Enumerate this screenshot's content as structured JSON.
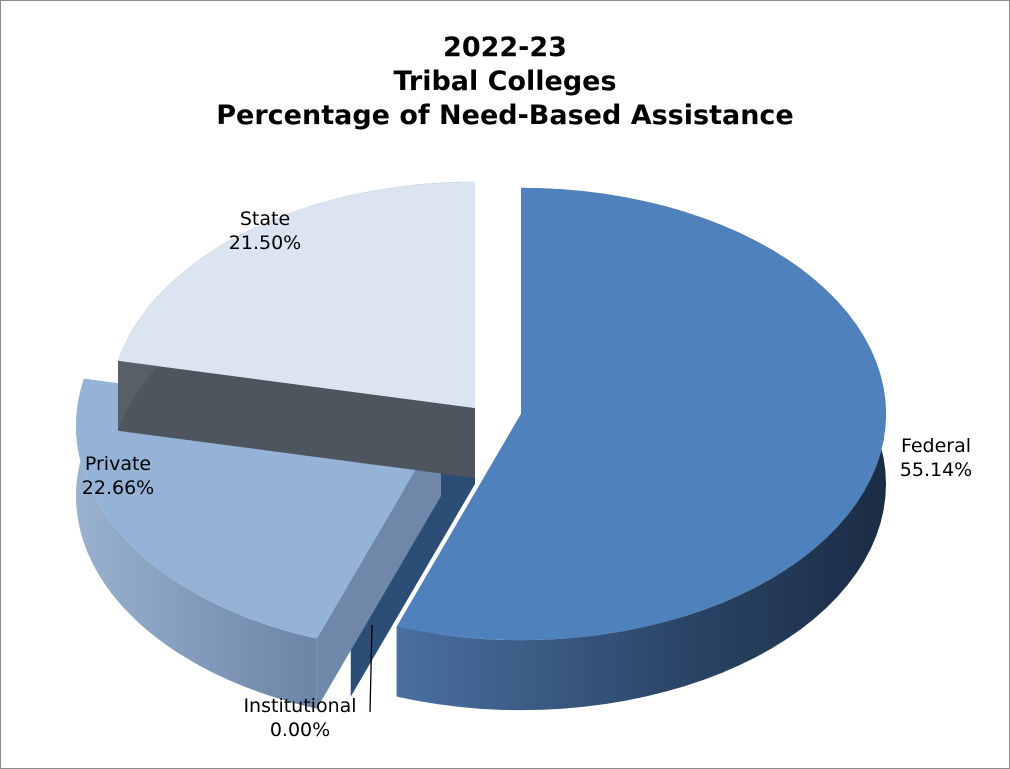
{
  "chart_data": {
    "type": "pie",
    "title": [
      "2022-23",
      "Tribal Colleges",
      "Percentage of Need-Based Assistance"
    ],
    "slices": [
      {
        "label": "Federal",
        "value": 55.14,
        "value_label": "55.14%",
        "color": "#4f81bd"
      },
      {
        "label": "Institutional",
        "value": 0.0,
        "value_label": "0.00%",
        "color": "#2c4d75"
      },
      {
        "label": "Private",
        "value": 22.66,
        "value_label": "22.66%",
        "color": "#95b3d7"
      },
      {
        "label": "State",
        "value": 21.5,
        "value_label": "21.50%",
        "color": "#dbe5f1"
      }
    ],
    "legend": "none",
    "style": "3d-exploded"
  }
}
